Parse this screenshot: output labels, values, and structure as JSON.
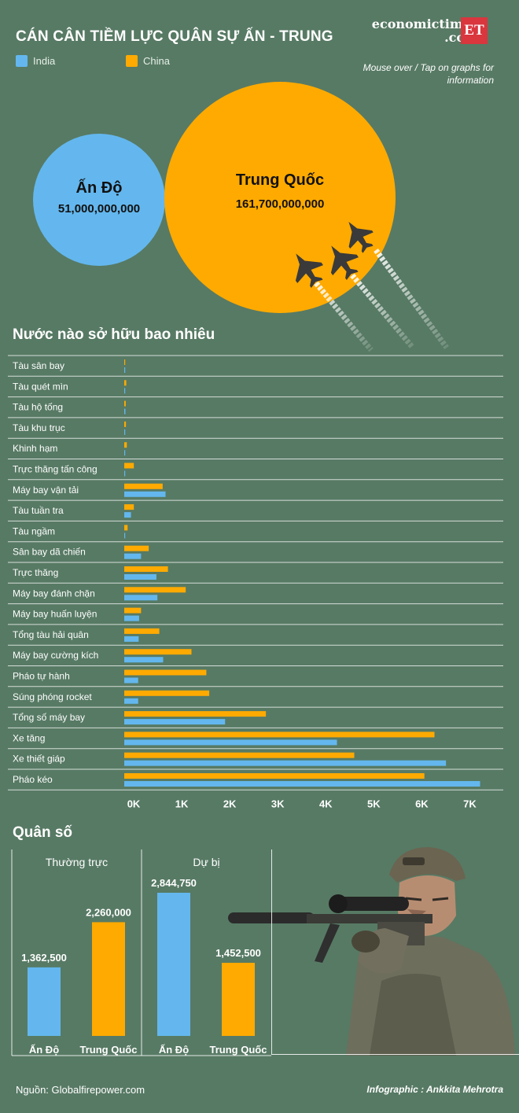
{
  "title": "CÁN CÂN TIỀM LỰC QUÂN SỰ ẤN - TRUNG",
  "legend": [
    {
      "label": "India",
      "color": "#63b7ee"
    },
    {
      "label": "China",
      "color": "#ffaa00"
    }
  ],
  "logo": {
    "text_line1": "economictimes",
    "text_line2": ".com",
    "badge": "ET"
  },
  "hint": "Mouse over / Tap on graphs for information",
  "budget": {
    "india": {
      "name": "Ấn Độ",
      "value": "51,000,000,000"
    },
    "china": {
      "name": "Trung Quốc",
      "value": "161,700,000,000"
    }
  },
  "colors": {
    "india": "#63b7ee",
    "china": "#ffaa00",
    "background": "#577a64"
  },
  "icons": {
    "jets": "fighter-jet-icon",
    "soldier": "soldier-sniper-image"
  },
  "chart_data": [
    {
      "type": "bar",
      "orientation": "horizontal",
      "title": "Nước nào sở hữu bao nhiêu",
      "categories": [
        "Tàu sân bay",
        "Tàu quét mìn",
        "Tàu hộ tống",
        "Tàu khu trục",
        "Khinh hạm",
        "Trực thăng tấn công",
        "Máy bay vận tải",
        "Tàu tuần tra",
        "Tàu ngầm",
        "Sân bay dã chiến",
        "Trực thăng",
        "Máy bay đánh chặn",
        "Máy bay huấn luyện",
        "Tổng tàu hải quân",
        "Máy bay cường kích",
        "Pháo tự hành",
        "Súng phóng rocket",
        "Tổng số máy bay",
        "Xe tăng",
        "Xe thiết giáp",
        "Pháo kéo"
      ],
      "series": [
        {
          "name": "China",
          "color": "#ffaa00",
          "values": [
            1,
            42,
            31,
            35,
            54,
            200,
            800,
            200,
            70,
            510,
            910,
            1280,
            350,
            730,
            1400,
            1710,
            1770,
            2950,
            6460,
            4790,
            6250
          ]
        },
        {
          "name": "India",
          "color": "#63b7ee",
          "values": [
            1,
            6,
            24,
            9,
            14,
            19,
            860,
            140,
            15,
            350,
            670,
            690,
            310,
            300,
            810,
            290,
            290,
            2100,
            4430,
            6700,
            7410
          ]
        }
      ],
      "xlim": [
        0,
        7500
      ],
      "xticks": [
        "0K",
        "1K",
        "2K",
        "3K",
        "4K",
        "5K",
        "6K",
        "7K"
      ],
      "grid": "horizontal separators",
      "legend": "top-left"
    },
    {
      "type": "bar",
      "title": "Quân số",
      "subtitle": "Thường trực",
      "categories": [
        "Ấn Độ",
        "Trung Quốc"
      ],
      "values": [
        1362500,
        2260000
      ],
      "labels": [
        "1,362,500",
        "2,260,000"
      ],
      "colors": [
        "#63b7ee",
        "#ffaa00"
      ]
    },
    {
      "type": "bar",
      "subtitle": "Dự bị",
      "categories": [
        "Ấn Độ",
        "Trung Quốc"
      ],
      "values": [
        2844750,
        1452500
      ],
      "labels": [
        "2,844,750",
        "1,452,500"
      ],
      "colors": [
        "#63b7ee",
        "#ffaa00"
      ]
    }
  ],
  "footer": {
    "source": "Nguồn: Globalfirepower.com",
    "credit": "Infographic : Ankkita Mehrotra"
  }
}
